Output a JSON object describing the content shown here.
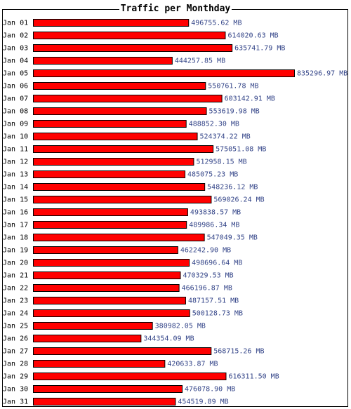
{
  "chart_data": {
    "type": "bar",
    "orientation": "horizontal",
    "title": "Traffic per Monthday",
    "unit": "MB",
    "bar_color": "#ff0000",
    "bar_border_color": "#000000",
    "label_color": "#334488",
    "categories": [
      "Jan 01",
      "Jan 02",
      "Jan 03",
      "Jan 04",
      "Jan 05",
      "Jan 06",
      "Jan 07",
      "Jan 08",
      "Jan 09",
      "Jan 10",
      "Jan 11",
      "Jan 12",
      "Jan 13",
      "Jan 14",
      "Jan 15",
      "Jan 16",
      "Jan 17",
      "Jan 18",
      "Jan 19",
      "Jan 20",
      "Jan 21",
      "Jan 22",
      "Jan 23",
      "Jan 24",
      "Jan 25",
      "Jan 26",
      "Jan 27",
      "Jan 28",
      "Jan 29",
      "Jan 30",
      "Jan 31"
    ],
    "values": [
      496755.62,
      614020.63,
      635741.79,
      444257.85,
      835296.97,
      550761.78,
      603142.91,
      553619.98,
      488852.3,
      524374.22,
      575051.08,
      512958.15,
      485075.23,
      548236.12,
      569026.24,
      493838.57,
      489986.34,
      547049.35,
      462242.9,
      498696.64,
      470329.53,
      466196.87,
      487157.51,
      500128.73,
      380982.05,
      344354.09,
      568715.26,
      420633.87,
      616311.5,
      476078.9,
      454519.89
    ],
    "value_labels": [
      "496755.62 MB",
      "614020.63 MB",
      "635741.79 MB",
      "444257.85 MB",
      "835296.97 MB",
      "550761.78 MB",
      "603142.91 MB",
      "553619.98 MB",
      "488852.30 MB",
      "524374.22 MB",
      "575051.08 MB",
      "512958.15 MB",
      "485075.23 MB",
      "548236.12 MB",
      "569026.24 MB",
      "493838.57 MB",
      "489986.34 MB",
      "547049.35 MB",
      "462242.90 MB",
      "498696.64 MB",
      "470329.53 MB",
      "466196.87 MB",
      "487157.51 MB",
      "500128.73 MB",
      "380982.05 MB",
      "344354.09 MB",
      "568715.26 MB",
      "420633.87 MB",
      "616311.50 MB",
      "476078.90 MB",
      "454519.89 MB"
    ]
  }
}
